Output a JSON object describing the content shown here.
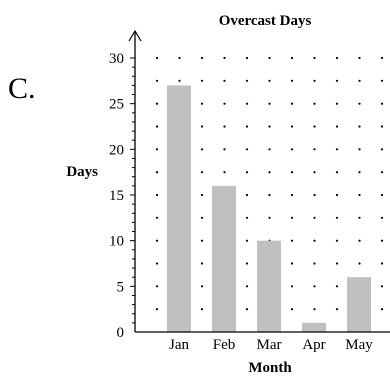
{
  "option_label": "C.",
  "chart_data": {
    "type": "bar",
    "title": "Overcast Days",
    "xlabel": "Month",
    "ylabel": "Days",
    "categories": [
      "Jan",
      "Feb",
      "Mar",
      "Apr",
      "May"
    ],
    "values": [
      27,
      16,
      10,
      1,
      6
    ],
    "ylim": [
      0,
      30
    ],
    "yticks": [
      0,
      5,
      10,
      15,
      20,
      25,
      30
    ],
    "bar_color": "#c0c0c0",
    "grid": "dotted",
    "legend": "none"
  }
}
